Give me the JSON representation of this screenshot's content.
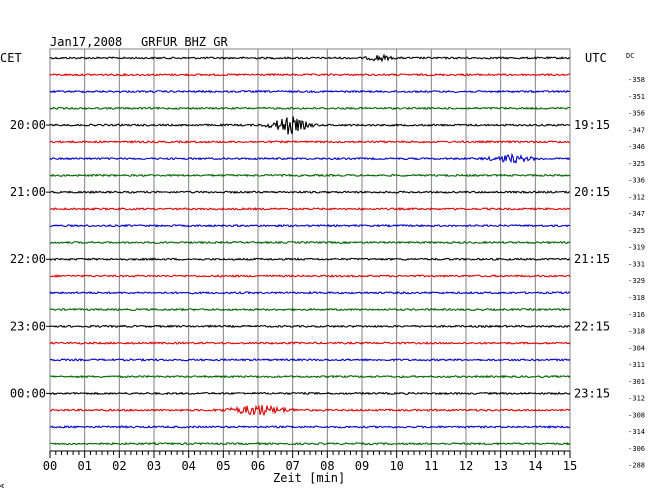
{
  "header": {
    "date": "Jan17,2008",
    "station": "GRFUR BHZ GR",
    "left_tz": "CET",
    "right_tz": "UTC",
    "dc_label": "DC"
  },
  "footer": {
    "xlabel": "Zeit [min]",
    "corner_mark": "A"
  },
  "colors": {
    "trace_cycle": [
      "#000000",
      "#e00000",
      "#0000cc",
      "#006600"
    ],
    "grid": "#808080",
    "axis": "#000000"
  },
  "chart_data": {
    "type": "line",
    "title": "Jan17,2008   GRFUR BHZ GR",
    "xlabel": "Zeit [min]",
    "ylabel": "",
    "xlim": [
      0,
      15
    ],
    "x_tick_labels": [
      "00",
      "01",
      "02",
      "03",
      "04",
      "05",
      "06",
      "07",
      "08",
      "09",
      "10",
      "11",
      "12",
      "13",
      "14",
      "15"
    ],
    "trace_interval_min": 15,
    "left_time_labels": [
      {
        "trace": 4,
        "label": "20:00"
      },
      {
        "trace": 8,
        "label": "21:00"
      },
      {
        "trace": 12,
        "label": "22:00"
      },
      {
        "trace": 16,
        "label": "23:00"
      },
      {
        "trace": 20,
        "label": "00:00"
      }
    ],
    "right_time_labels": [
      {
        "trace": 4,
        "label": "19:15"
      },
      {
        "trace": 8,
        "label": "20:15"
      },
      {
        "trace": 12,
        "label": "21:15"
      },
      {
        "trace": 16,
        "label": "22:15"
      },
      {
        "trace": 20,
        "label": "23:15"
      }
    ],
    "dc_offsets": [
      -358,
      -351,
      -356,
      -347,
      -346,
      -325,
      -336,
      -312,
      -347,
      -325,
      -319,
      -331,
      -329,
      -318,
      -316,
      -318,
      -304,
      -311,
      -301,
      -312,
      -308,
      -314,
      -306,
      -288
    ],
    "events": [
      {
        "trace": 0,
        "minute": 9.5,
        "amplitude": 1.6,
        "width_min": 0.6
      },
      {
        "trace": 4,
        "minute": 6.9,
        "amplitude": 4.5,
        "width_min": 1.0
      },
      {
        "trace": 6,
        "minute": 13.3,
        "amplitude": 1.8,
        "width_min": 1.2
      },
      {
        "trace": 21,
        "minute": 6.0,
        "amplitude": 2.6,
        "width_min": 1.6
      }
    ]
  }
}
